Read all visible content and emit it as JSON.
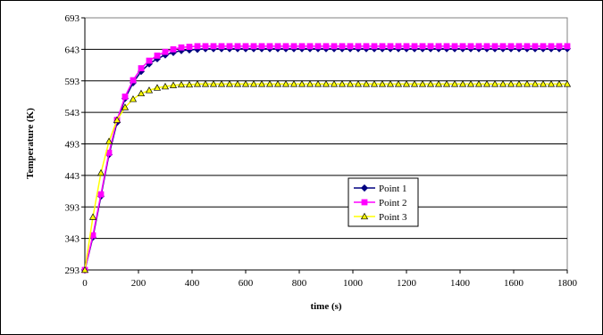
{
  "chart_data": {
    "type": "line",
    "xlabel": "time (s)",
    "ylabel": "Temperature (K)",
    "xlim": [
      0,
      1800
    ],
    "ylim": [
      293,
      693
    ],
    "x_ticks": [
      "0",
      "200",
      "400",
      "600",
      "800",
      "1000",
      "1200",
      "1400",
      "1600",
      "1800"
    ],
    "y_ticks": [
      "293",
      "343",
      "393",
      "443",
      "493",
      "543",
      "593",
      "643",
      "693"
    ],
    "grid": "horizontal",
    "legend_position": "center-right",
    "x": [
      0,
      30,
      60,
      90,
      120,
      150,
      180,
      210,
      240,
      270,
      300,
      330,
      360,
      390,
      420,
      450,
      480,
      510,
      540,
      570,
      600,
      630,
      660,
      690,
      720,
      750,
      780,
      810,
      840,
      870,
      900,
      930,
      960,
      990,
      1020,
      1050,
      1080,
      1110,
      1140,
      1170,
      1200,
      1230,
      1260,
      1290,
      1320,
      1350,
      1380,
      1410,
      1440,
      1470,
      1500,
      1530,
      1560,
      1590,
      1620,
      1650,
      1680,
      1710,
      1740,
      1770,
      1800
    ],
    "series": [
      {
        "name": "Point 1",
        "color": "#000080",
        "marker": "diamond",
        "values": [
          293,
          345,
          410,
          476,
          527,
          565,
          590,
          608,
          620,
          628,
          634,
          638,
          641,
          642,
          643,
          644,
          644,
          644,
          644,
          644,
          644,
          644,
          644,
          644,
          644,
          644,
          644,
          644,
          644,
          644,
          644,
          644,
          644,
          644,
          644,
          644,
          644,
          644,
          644,
          644,
          644,
          644,
          644,
          644,
          644,
          644,
          644,
          644,
          644,
          644,
          644,
          644,
          644,
          644,
          644,
          644,
          644,
          644,
          644,
          644,
          644
        ]
      },
      {
        "name": "Point 2",
        "color": "#ff00ff",
        "marker": "square",
        "values": [
          293,
          348,
          413,
          479,
          531,
          568,
          594,
          613,
          625,
          633,
          639,
          643,
          646,
          647,
          648,
          648,
          648,
          648,
          648,
          648,
          648,
          648,
          648,
          648,
          648,
          648,
          648,
          648,
          648,
          648,
          648,
          648,
          648,
          648,
          648,
          648,
          648,
          648,
          648,
          648,
          648,
          648,
          648,
          648,
          648,
          648,
          648,
          648,
          648,
          648,
          648,
          648,
          648,
          648,
          648,
          648,
          648,
          648,
          648,
          648,
          648
        ]
      },
      {
        "name": "Point 3",
        "color": "#ffff00",
        "marker": "triangle",
        "values": [
          293,
          377,
          447,
          497,
          531,
          551,
          564,
          573,
          578,
          582,
          584,
          586,
          587,
          587,
          588,
          588,
          588,
          588,
          588,
          588,
          588,
          588,
          588,
          588,
          588,
          588,
          588,
          588,
          588,
          588,
          588,
          588,
          588,
          588,
          588,
          588,
          588,
          588,
          588,
          588,
          588,
          588,
          588,
          588,
          588,
          588,
          588,
          588,
          588,
          588,
          588,
          588,
          588,
          588,
          588,
          588,
          588,
          588,
          588,
          588,
          588
        ]
      }
    ]
  }
}
